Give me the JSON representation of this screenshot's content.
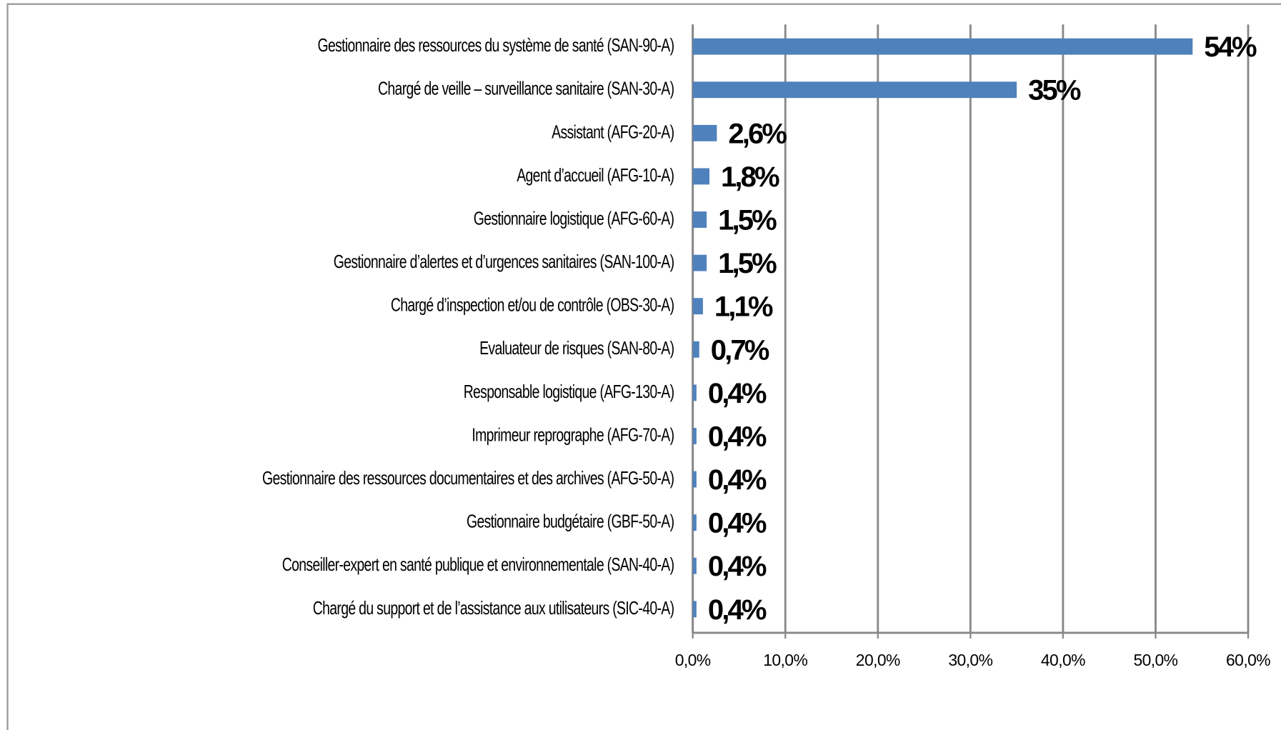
{
  "chart_data": {
    "type": "bar",
    "orientation": "horizontal",
    "categories": [
      "Gestionnaire des ressources du système de santé (SAN-90-A)",
      "Chargé de veille – surveillance sanitaire (SAN-30-A)",
      "Assistant (AFG-20-A)",
      "Agent d’accueil (AFG-10-A)",
      "Gestionnaire logistique (AFG-60-A)",
      "Gestionnaire d’alertes et d’urgences sanitaires (SAN-100-A)",
      "Chargé d’inspection et/ou de contrôle (OBS-30-A)",
      "Evaluateur de risques (SAN-80-A)",
      "Responsable logistique (AFG-130-A)",
      "Imprimeur reprographe (AFG-70-A)",
      "Gestionnaire des ressources documentaires et des archives (AFG-50-A)",
      "Gestionnaire budgétaire (GBF-50-A)",
      "Conseiller-expert en santé publique et environnementale (SAN-40-A)",
      "Chargé du support et de l’assistance aux utilisateurs (SIC-40-A)"
    ],
    "values": [
      54,
      35,
      2.6,
      1.8,
      1.5,
      1.5,
      1.1,
      0.7,
      0.4,
      0.4,
      0.4,
      0.4,
      0.4,
      0.4
    ],
    "value_labels": [
      "54%",
      "35%",
      "2,6%",
      "1,8%",
      "1,5%",
      "1,5%",
      "1,1%",
      "0,7%",
      "0,4%",
      "0,4%",
      "0,4%",
      "0,4%",
      "0,4%",
      "0,4%"
    ],
    "color": "#4f81bd",
    "xlim": [
      0,
      60
    ],
    "xticks": [
      {
        "value": 0,
        "label": "0,0%"
      },
      {
        "value": 10,
        "label": "10,0%"
      },
      {
        "value": 20,
        "label": "20,0%"
      },
      {
        "value": 30,
        "label": "30,0%"
      },
      {
        "value": 40,
        "label": "40,0%"
      },
      {
        "value": 50,
        "label": "50,0%"
      },
      {
        "value": 60,
        "label": "60,0%"
      }
    ],
    "grid": true
  }
}
